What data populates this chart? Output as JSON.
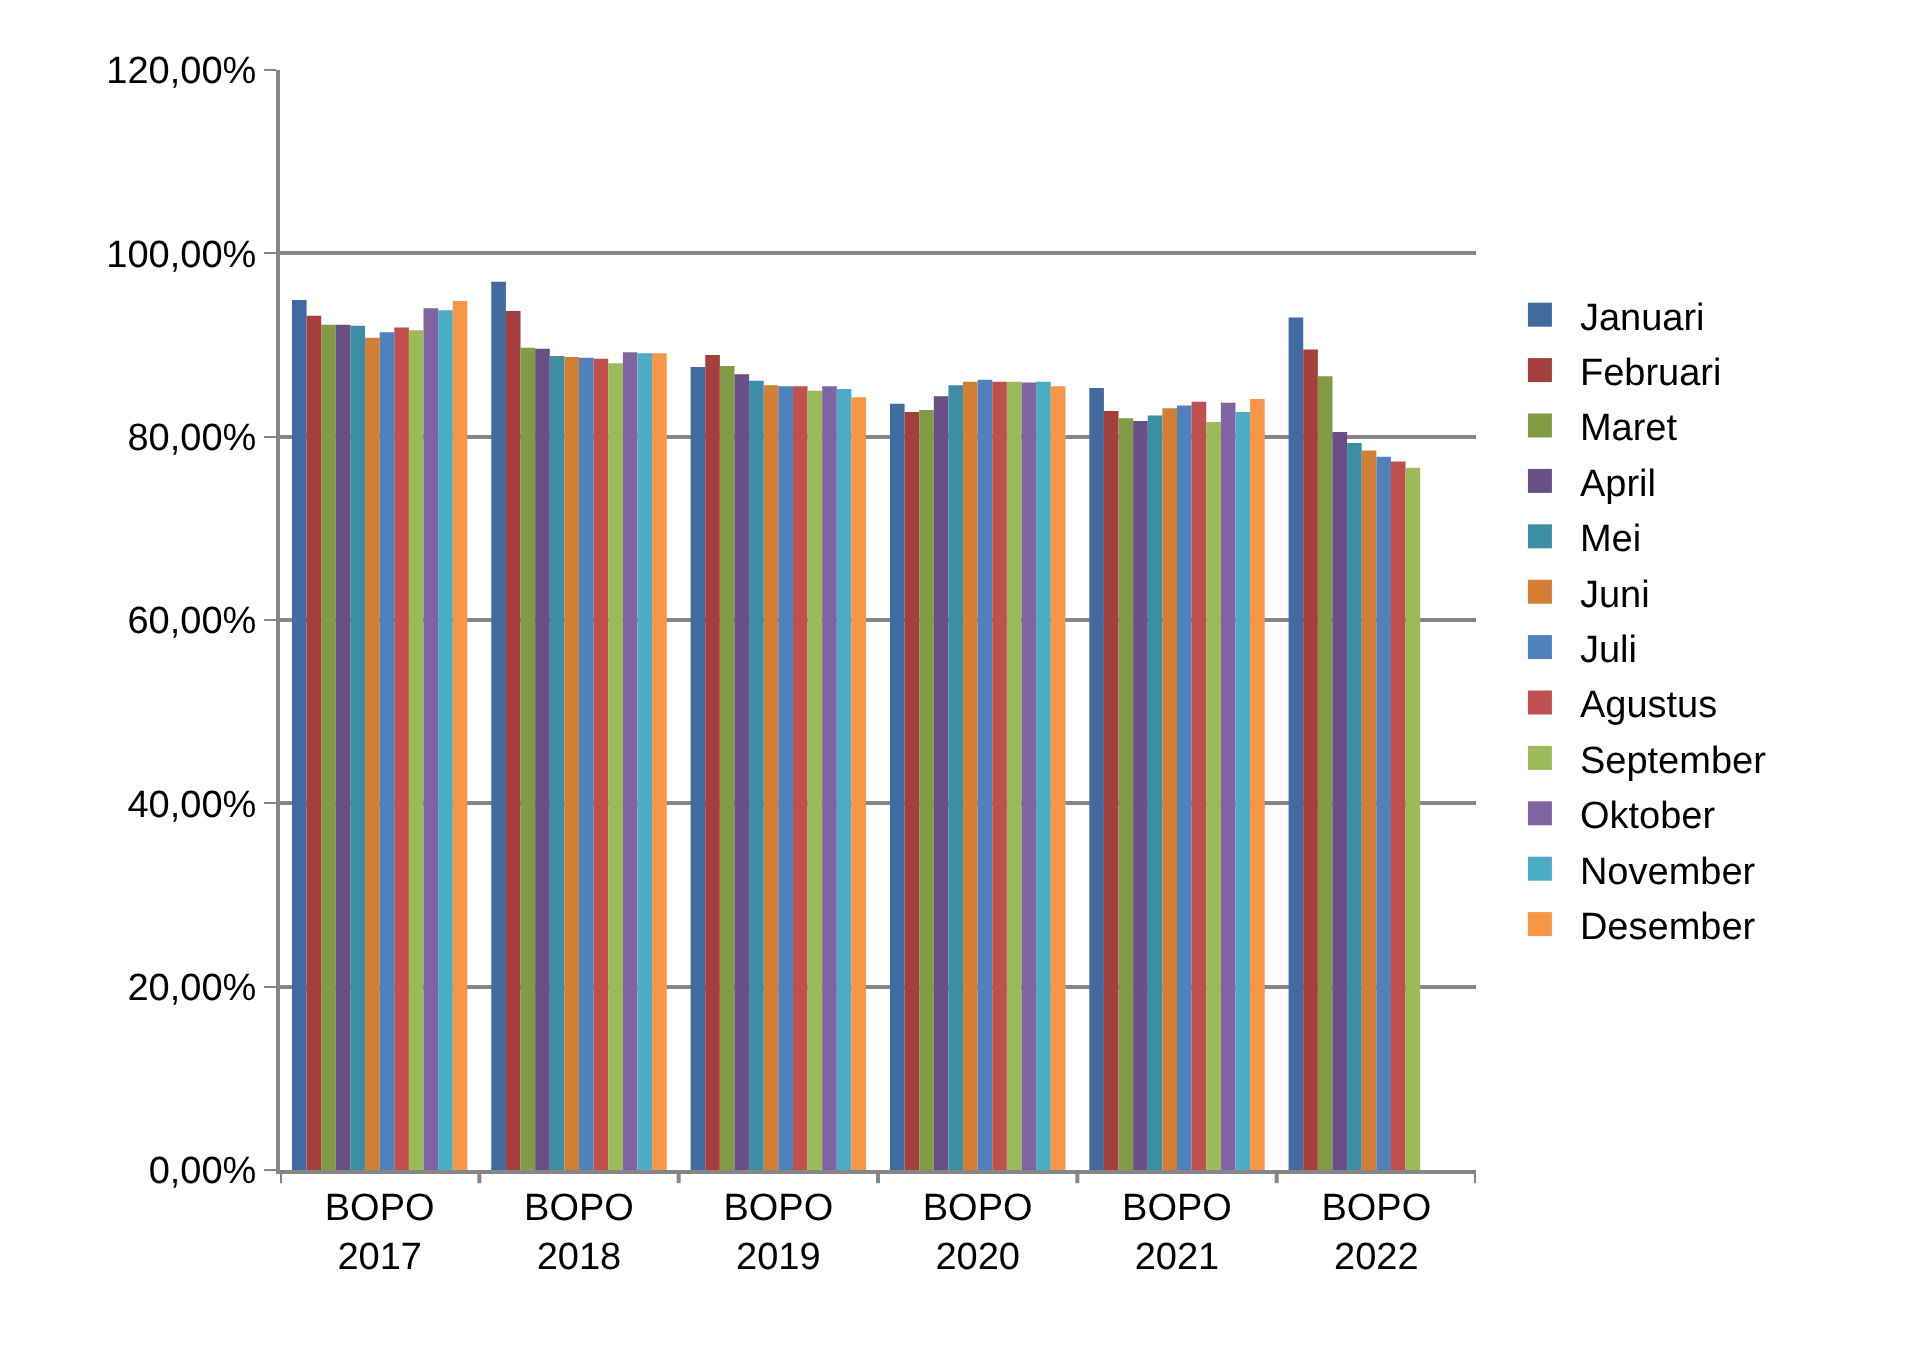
{
  "chart_data": {
    "type": "bar",
    "categories": [
      "BOPO 2017",
      "BOPO 2018",
      "BOPO 2019",
      "BOPO 2020",
      "BOPO 2021",
      "BOPO 2022"
    ],
    "series": [
      {
        "name": "Januari",
        "color": "#416b9f",
        "values": [
          94.9,
          96.9,
          87.6,
          83.6,
          85.3,
          93.0
        ]
      },
      {
        "name": "Februari",
        "color": "#a43f3d",
        "values": [
          93.2,
          93.7,
          88.9,
          82.7,
          82.8,
          89.5
        ]
      },
      {
        "name": "Maret",
        "color": "#819b45",
        "values": [
          92.2,
          89.7,
          87.7,
          82.9,
          82.0,
          86.6
        ]
      },
      {
        "name": "April",
        "color": "#684f86",
        "values": [
          92.2,
          89.6,
          86.8,
          84.4,
          81.7,
          80.5
        ]
      },
      {
        "name": "Mei",
        "color": "#3b8ea3",
        "values": [
          92.1,
          88.8,
          86.1,
          85.6,
          82.3,
          79.3
        ]
      },
      {
        "name": "Juni",
        "color": "#d27f35",
        "values": [
          90.8,
          88.7,
          85.6,
          86.0,
          83.1,
          78.5
        ]
      },
      {
        "name": "Juli",
        "color": "#4f81bd",
        "values": [
          91.4,
          88.6,
          85.5,
          86.2,
          83.4,
          77.8
        ]
      },
      {
        "name": "Agustus",
        "color": "#c0504d",
        "values": [
          91.9,
          88.5,
          85.5,
          86.0,
          83.8,
          77.3
        ]
      },
      {
        "name": "September",
        "color": "#9bbb59",
        "values": [
          91.6,
          88.0,
          85.0,
          86.0,
          81.6,
          76.6
        ]
      },
      {
        "name": "Oktober",
        "color": "#8064a2",
        "values": [
          94.0,
          89.2,
          85.5,
          85.9,
          83.7,
          null
        ]
      },
      {
        "name": "November",
        "color": "#4bacc6",
        "values": [
          93.8,
          89.1,
          85.2,
          86.0,
          82.7,
          null
        ]
      },
      {
        "name": "Desember",
        "color": "#f79646",
        "values": [
          94.8,
          89.1,
          84.3,
          85.5,
          84.1,
          null
        ]
      }
    ],
    "ylim": [
      0,
      120
    ],
    "yticks": [
      {
        "value": 0,
        "label": "0,00%"
      },
      {
        "value": 20,
        "label": "20,00%"
      },
      {
        "value": 40,
        "label": "40,00%"
      },
      {
        "value": 60,
        "label": "60,00%"
      },
      {
        "value": 80,
        "label": "80,00%"
      },
      {
        "value": 100,
        "label": "100,00%"
      },
      {
        "value": 120,
        "label": "120,00%"
      }
    ],
    "grid": "y",
    "legend": "right"
  }
}
